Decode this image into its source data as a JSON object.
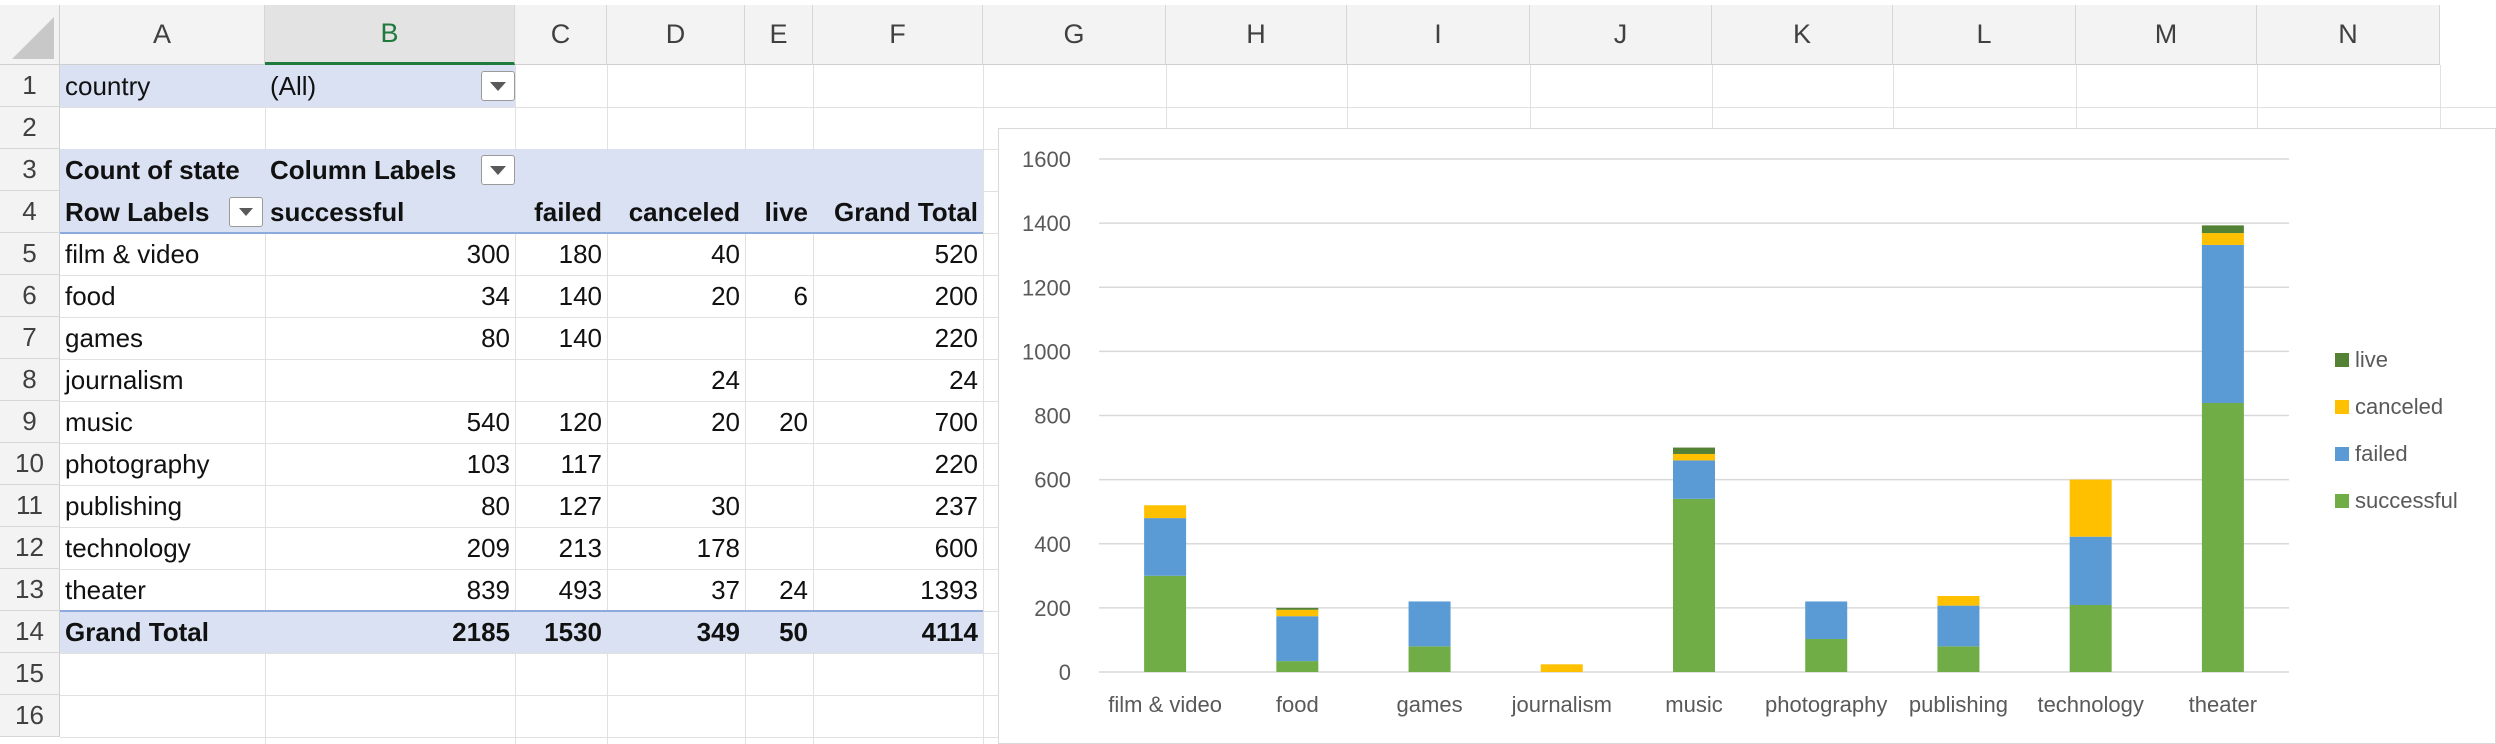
{
  "columns": [
    "A",
    "B",
    "C",
    "D",
    "E",
    "F",
    "G",
    "H",
    "I",
    "J",
    "K",
    "L",
    "M",
    "N"
  ],
  "rows": [
    "1",
    "2",
    "3",
    "4",
    "5",
    "6",
    "7",
    "8",
    "9",
    "10",
    "11",
    "12",
    "13",
    "14",
    "15",
    "16"
  ],
  "selected_column": "B",
  "pivot": {
    "filter_label": "country",
    "filter_value": "(All)",
    "value_label": "Count of state",
    "column_labels": "Column Labels",
    "row_labels": "Row Labels",
    "headers": [
      "successful",
      "failed",
      "canceled",
      "live",
      "Grand Total"
    ],
    "rows": [
      {
        "label": "film & video",
        "successful": "300",
        "failed": "180",
        "canceled": "40",
        "live": "",
        "total": "520"
      },
      {
        "label": "food",
        "successful": "34",
        "failed": "140",
        "canceled": "20",
        "live": "6",
        "total": "200"
      },
      {
        "label": "games",
        "successful": "80",
        "failed": "140",
        "canceled": "",
        "live": "",
        "total": "220"
      },
      {
        "label": "journalism",
        "successful": "",
        "failed": "",
        "canceled": "24",
        "live": "",
        "total": "24"
      },
      {
        "label": "music",
        "successful": "540",
        "failed": "120",
        "canceled": "20",
        "live": "20",
        "total": "700"
      },
      {
        "label": "photography",
        "successful": "103",
        "failed": "117",
        "canceled": "",
        "live": "",
        "total": "220"
      },
      {
        "label": "publishing",
        "successful": "80",
        "failed": "127",
        "canceled": "30",
        "live": "",
        "total": "237"
      },
      {
        "label": "technology",
        "successful": "209",
        "failed": "213",
        "canceled": "178",
        "live": "",
        "total": "600"
      },
      {
        "label": "theater",
        "successful": "839",
        "failed": "493",
        "canceled": "37",
        "live": "24",
        "total": "1393"
      }
    ],
    "grand_total": {
      "label": "Grand Total",
      "successful": "2185",
      "failed": "1530",
      "canceled": "349",
      "live": "50",
      "total": "4114"
    }
  },
  "chart_data": {
    "type": "bar",
    "stacked": true,
    "categories": [
      "film & video",
      "food",
      "games",
      "journalism",
      "music",
      "photography",
      "publishing",
      "technology",
      "theater"
    ],
    "series": [
      {
        "name": "successful",
        "color": "#70ad47",
        "values": [
          300,
          34,
          80,
          0,
          540,
          103,
          80,
          209,
          839
        ]
      },
      {
        "name": "failed",
        "color": "#5b9bd5",
        "values": [
          180,
          140,
          140,
          0,
          120,
          117,
          127,
          213,
          493
        ]
      },
      {
        "name": "canceled",
        "color": "#ffc000",
        "values": [
          40,
          20,
          0,
          24,
          20,
          0,
          30,
          178,
          37
        ]
      },
      {
        "name": "live",
        "color": "#548235",
        "values": [
          0,
          6,
          0,
          0,
          20,
          0,
          0,
          0,
          24
        ]
      }
    ],
    "ylim": [
      0,
      1600
    ],
    "yticks": [
      "0",
      "200",
      "400",
      "600",
      "800",
      "1000",
      "1200",
      "1400",
      "1600"
    ],
    "grid": true,
    "legend_position": "right",
    "legend_order": [
      "live",
      "canceled",
      "failed",
      "successful"
    ]
  }
}
